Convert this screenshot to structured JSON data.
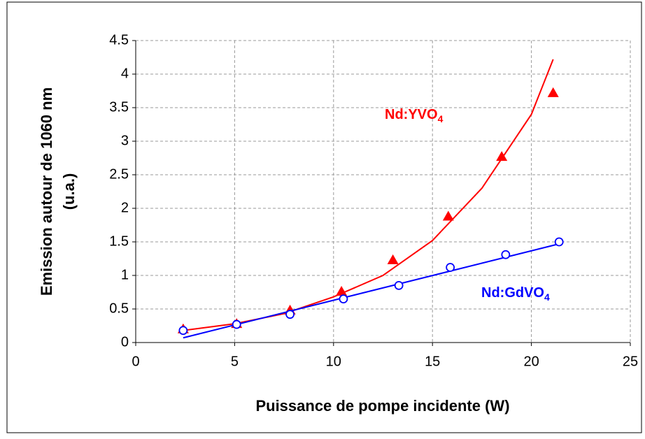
{
  "chart_data": {
    "type": "scatter",
    "x_label": "Puissance de pompe incidente (W)",
    "y_label": [
      "Emission autour de 1060 nm",
      "(u.a.)"
    ],
    "xlim": [
      0,
      25
    ],
    "xticks": [
      0,
      5,
      10,
      15,
      20,
      25
    ],
    "ylim": [
      0,
      4.5
    ],
    "yticks": [
      0,
      0.5,
      1,
      1.5,
      2,
      2.5,
      3,
      3.5,
      4,
      4.5
    ],
    "grid": true,
    "series": [
      {
        "name": "Nd:YVO",
        "sub": "4",
        "color": "#ff0000",
        "marker": "triangle",
        "x": [
          2.4,
          5.1,
          7.8,
          10.4,
          13.0,
          15.8,
          18.5,
          21.1
        ],
        "values": [
          0.2,
          0.28,
          0.48,
          0.76,
          1.23,
          1.88,
          2.77,
          3.72
        ],
        "fit_x": [
          2.4,
          5,
          7.5,
          10,
          12.5,
          15,
          17.5,
          20,
          21.1
        ],
        "fit_values": [
          0.18,
          0.28,
          0.43,
          0.68,
          1.0,
          1.52,
          2.3,
          3.4,
          4.22
        ]
      },
      {
        "name": "Nd:GdVO",
        "sub": "4",
        "color": "#0000ff",
        "marker": "circle",
        "x": [
          2.4,
          5.1,
          7.8,
          10.5,
          13.3,
          15.9,
          18.7,
          21.4
        ],
        "values": [
          0.18,
          0.27,
          0.42,
          0.65,
          0.85,
          1.12,
          1.31,
          1.5
        ],
        "fit_x": [
          2.4,
          21.4
        ],
        "fit_values": [
          0.07,
          1.47
        ]
      }
    ]
  }
}
